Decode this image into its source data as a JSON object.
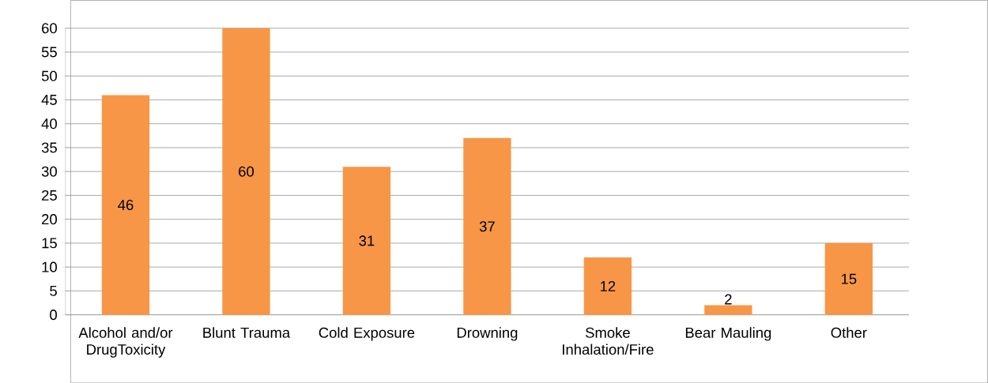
{
  "chart_data": {
    "type": "bar",
    "categories": [
      "Alcohol and/or DrugToxicity",
      "Blunt Trauma",
      "Cold Exposure",
      "Drowning",
      "Smoke Inhalation/Fire",
      "Bear Mauling",
      "Other"
    ],
    "values": [
      46,
      60,
      31,
      37,
      12,
      2,
      15
    ],
    "color": "#f79646",
    "ylim": [
      0,
      60
    ],
    "yticks": [
      0,
      5,
      10,
      15,
      20,
      25,
      30,
      35,
      40,
      45,
      50,
      55,
      60
    ],
    "grid": "y",
    "data_labels": true
  }
}
